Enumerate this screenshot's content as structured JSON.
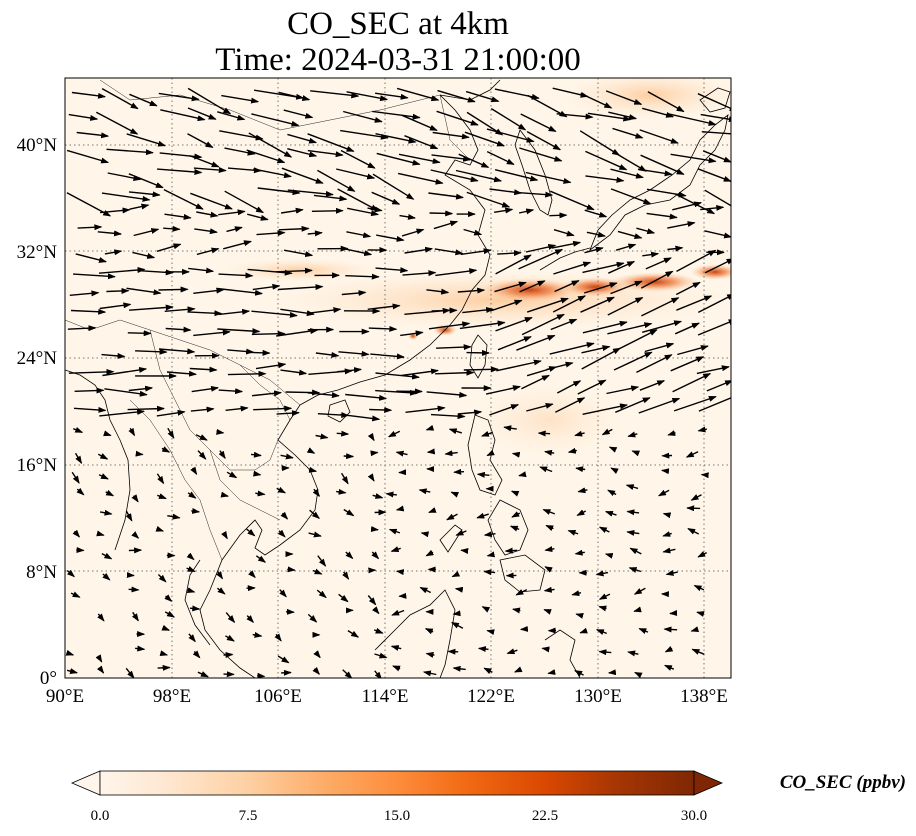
{
  "title_line1": "CO_SEC at 4km",
  "title_line2": "Time: 2024-03-31 21:00:00",
  "map": {
    "lon_range": [
      90,
      140
    ],
    "lat_range": [
      0,
      45
    ],
    "lon_ticks": [
      "90°E",
      "98°E",
      "106°E",
      "114°E",
      "122°E",
      "130°E",
      "138°E"
    ],
    "lat_ticks": [
      "0°",
      "8°N",
      "16°N",
      "24°N",
      "32°N",
      "40°N"
    ],
    "gridlines": true,
    "background_color": "#fff6e9"
  },
  "colorbar": {
    "label": "CO_SEC (ppbv)",
    "ticks": [
      "0.0",
      "7.5",
      "15.0",
      "22.5",
      "30.0"
    ],
    "range": [
      0,
      30
    ],
    "extend": "both",
    "colors": [
      "#fff5eb",
      "#fee6ce",
      "#fdd0a2",
      "#fdae6b",
      "#fd8d3c",
      "#f16913",
      "#d94801",
      "#a63603",
      "#7f2704"
    ]
  },
  "high_co_band": {
    "lon_range": [
      121,
      140
    ],
    "lat_approx": 29,
    "peak_ppbv": 22
  }
}
